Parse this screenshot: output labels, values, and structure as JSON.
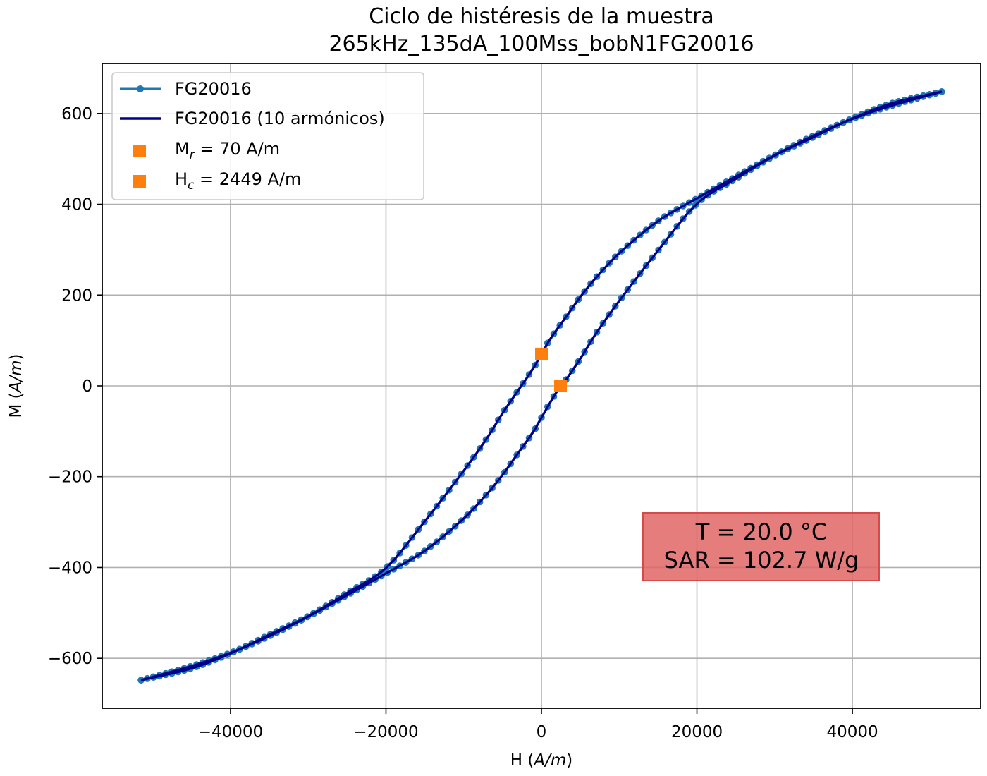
{
  "chart_data": {
    "type": "line",
    "title": "Ciclo de histéresis de la muestra",
    "subtitle": "265kHz_135dA_100Mss_bobN1FG20016",
    "xlabel": "H",
    "xlabel_unit": "A/m",
    "ylabel": "M",
    "ylabel_unit": "A/m",
    "xlim": [
      -56500,
      56500
    ],
    "ylim": [
      -710,
      710
    ],
    "x_ticks": [
      -40000,
      -20000,
      0,
      20000,
      40000
    ],
    "x_tick_labels": [
      "−40000",
      "−20000",
      "0",
      "20000",
      "40000"
    ],
    "y_ticks": [
      -600,
      -400,
      -200,
      0,
      200,
      400,
      600
    ],
    "y_tick_labels": [
      "−600",
      "−400",
      "−200",
      "0",
      "200",
      "400",
      "600"
    ],
    "grid": true,
    "legend_position": "top-left",
    "series": [
      {
        "name": "FG20016",
        "style": "line-with-markers",
        "color": "#1f77b4",
        "branches": [
          {
            "branch": "descending",
            "x": [
              51500,
              45000,
              40000,
              35000,
              30000,
              25000,
              20000,
              15000,
              10000,
              7000,
              5000,
              3000,
              1000,
              0,
              -1000,
              -3000,
              -5000,
              -7000,
              -10000,
              -15000,
              -20000,
              -25000,
              -30000,
              -35000,
              -40000,
              -45000,
              -51500
            ],
            "y": [
              648,
              617,
              588,
              551,
              508,
              461,
              413,
              363,
              292,
              238,
              196,
              148,
              100,
              70,
              40,
              -10,
              -60,
              -115,
              -187,
              -298,
              -401,
              -456,
              -507,
              -548,
              -589,
              -622,
              -648
            ]
          },
          {
            "branch": "ascending",
            "x": [
              -51500,
              -45000,
              -40000,
              -35000,
              -30000,
              -25000,
              -20000,
              -15000,
              -10000,
              -7000,
              -5000,
              -3000,
              -1000,
              0,
              1000,
              2449,
              3000,
              5000,
              7000,
              10000,
              15000,
              20000,
              25000,
              30000,
              35000,
              40000,
              45000,
              51500
            ],
            "y": [
              -648,
              -617,
              -588,
              -551,
              -508,
              -461,
              -413,
              -363,
              -292,
              -238,
              -196,
              -148,
              -100,
              -70,
              -40,
              0,
              10,
              60,
              115,
              187,
              298,
              401,
              456,
              507,
              548,
              589,
              622,
              648
            ]
          }
        ]
      },
      {
        "name": "FG20016 (10 armónicos)",
        "style": "line",
        "color": "#00008b"
      },
      {
        "name": "Mr = 70 A/m",
        "style": "square-marker",
        "color": "#ff7f0e",
        "points": [
          {
            "x": 0,
            "y": 70
          }
        ]
      },
      {
        "name": "Hc = 2449 A/m",
        "style": "square-marker",
        "color": "#ff7f0e",
        "points": [
          {
            "x": 2449,
            "y": 0
          }
        ]
      }
    ],
    "legend": [
      {
        "key": "FG20016",
        "main": "FG20016",
        "sub": "",
        "rest": ""
      },
      {
        "key": "FG20016 (10 armónicos)",
        "main": "FG20016 (10 armónicos)",
        "sub": "",
        "rest": ""
      },
      {
        "key": "Mr = 70 A/m",
        "main": "M",
        "sub": "r",
        "rest": " = 70 A/m"
      },
      {
        "key": "Hc = 2449 A/m",
        "main": "H",
        "sub": "c",
        "rest": " = 2449 A/m"
      }
    ],
    "annotation": {
      "lines": [
        "T = 20.0 °C",
        "SAR = 102.7 W/g"
      ],
      "background": "#e06666",
      "border": "#d84a4a"
    }
  }
}
